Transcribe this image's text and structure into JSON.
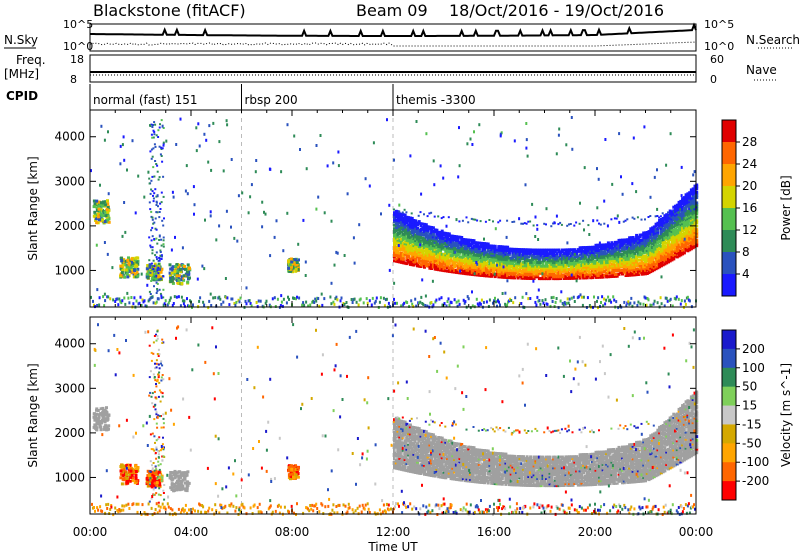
{
  "header": {
    "station": "Blackstone (fitACF)",
    "beam": "Beam 09",
    "dates": "18/Oct/2016 - 19/Oct/2016"
  },
  "left_labels": {
    "nsky": "N.Sky",
    "freq_line1": "Freq.",
    "freq_line2": "[MHz]",
    "cpid": "CPID"
  },
  "right_labels": {
    "nsearch": "N.Search",
    "nave": "Nave"
  },
  "noise_panel": {
    "left_ticks": [
      "10^5",
      "10^0"
    ],
    "right_ticks": [
      "10^5",
      "10^0"
    ]
  },
  "freq_panel": {
    "left_ticks": [
      "18",
      "8"
    ],
    "right_ticks": [
      "60",
      "0"
    ]
  },
  "cpid_segments": [
    {
      "label": "normal (fast) 151",
      "start_hour": 0
    },
    {
      "label": "rbsp 200",
      "start_hour": 6
    },
    {
      "label": "themis -3300",
      "start_hour": 12
    }
  ],
  "colors": {
    "power": [
      "#1a1aff",
      "#2a52be",
      "#2e8b57",
      "#55c050",
      "#d4d400",
      "#ffa500",
      "#ff6600",
      "#e00000"
    ],
    "velocity": [
      "#ff0000",
      "#ff6600",
      "#ffa500",
      "#d4a800",
      "#c8c8c8",
      "#7fd05a",
      "#2e8b57",
      "#2a52be",
      "#1a1acc"
    ],
    "ground_scatter": "#a0a0a0"
  },
  "chart_data": [
    {
      "type": "heatmap",
      "parameter": "power",
      "xlabel": "Time UT",
      "ylabel": "Slant Range [km]",
      "x_ticks": [
        "00:00",
        "04:00",
        "08:00",
        "12:00",
        "16:00",
        "20:00",
        "00:00"
      ],
      "x_range_hours": [
        0,
        24
      ],
      "y_range_km": [
        180,
        4600
      ],
      "y_ticks": [
        "1000",
        "2000",
        "3000",
        "4000"
      ],
      "colorbar": {
        "label": "Power [dB]",
        "range": [
          0,
          32
        ],
        "ticks": [
          "4",
          "8",
          "12",
          "16",
          "20",
          "24",
          "28"
        ]
      }
    },
    {
      "type": "heatmap",
      "parameter": "velocity",
      "xlabel": "Time UT",
      "ylabel": "Slant Range [km]",
      "x_ticks": [
        "00:00",
        "04:00",
        "08:00",
        "12:00",
        "16:00",
        "20:00",
        "00:00"
      ],
      "x_range_hours": [
        0,
        24
      ],
      "y_range_km": [
        180,
        4600
      ],
      "y_ticks": [
        "1000",
        "2000",
        "3000",
        "4000"
      ],
      "colorbar": {
        "label": "Velocity [m s^-1]",
        "ticks": [
          "200",
          "100",
          "50",
          "15",
          "-15",
          "-50",
          "-100",
          "-200"
        ]
      }
    }
  ]
}
